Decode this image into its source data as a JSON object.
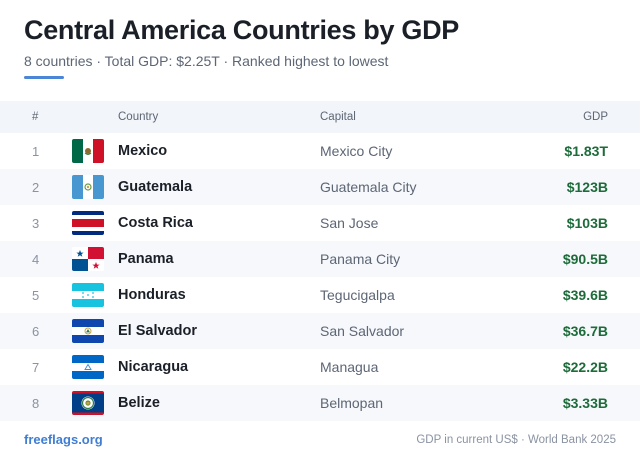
{
  "header": {
    "title": "Central America Countries by GDP",
    "subtitle": "8 countries · Total GDP: $2.25T · Ranked highest to lowest"
  },
  "table": {
    "columns": {
      "rank": "#",
      "country": "Country",
      "capital": "Capital",
      "gdp": "GDP"
    },
    "rows": [
      {
        "rank": "1",
        "country": "Mexico",
        "capital": "Mexico City",
        "gdp": "$1.83T",
        "flag": "mexico-flag-icon"
      },
      {
        "rank": "2",
        "country": "Guatemala",
        "capital": "Guatemala City",
        "gdp": "$123B",
        "flag": "guatemala-flag-icon"
      },
      {
        "rank": "3",
        "country": "Costa Rica",
        "capital": "San Jose",
        "gdp": "$103B",
        "flag": "costa-rica-flag-icon"
      },
      {
        "rank": "4",
        "country": "Panama",
        "capital": "Panama City",
        "gdp": "$90.5B",
        "flag": "panama-flag-icon"
      },
      {
        "rank": "5",
        "country": "Honduras",
        "capital": "Tegucigalpa",
        "gdp": "$39.6B",
        "flag": "honduras-flag-icon"
      },
      {
        "rank": "6",
        "country": "El Salvador",
        "capital": "San Salvador",
        "gdp": "$36.7B",
        "flag": "el-salvador-flag-icon"
      },
      {
        "rank": "7",
        "country": "Nicaragua",
        "capital": "Managua",
        "gdp": "$22.2B",
        "flag": "nicaragua-flag-icon"
      },
      {
        "rank": "8",
        "country": "Belize",
        "capital": "Belmopan",
        "gdp": "$3.33B",
        "flag": "belize-flag-icon"
      }
    ]
  },
  "footer": {
    "brand": "freeflags.org",
    "source": "GDP in current US$ · World Bank 2025"
  },
  "colors": {
    "accent": "#4b86d6",
    "gdp_text": "#1d6b3a",
    "header_bg": "#f2f5f9"
  }
}
